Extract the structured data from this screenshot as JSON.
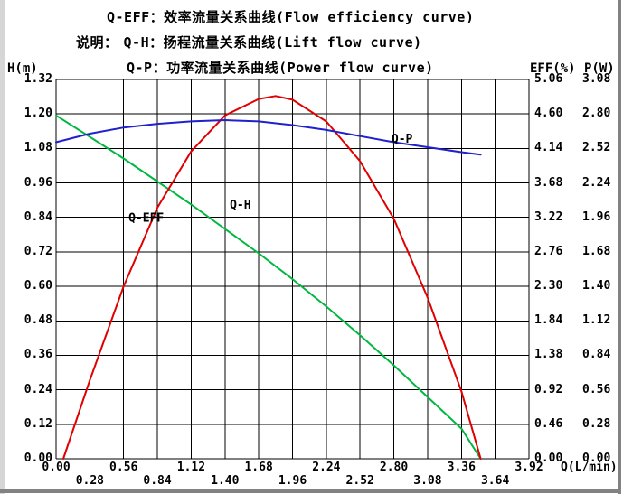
{
  "axes_titles": {
    "left": "H(m)",
    "right_eff": "EFF(%)",
    "right_p": "P(W)",
    "x": "Q(L/min)"
  },
  "chart_data": {
    "type": "line",
    "descriptions": {
      "line1": "Q-EFF：效率流量关系曲线(Flow efficiency curve)",
      "prefix": "说明：",
      "line2": "Q-H：扬程流量关系曲线(Lift flow curve)",
      "line3": "Q-P：功率流量关系曲线(Power flow curve)"
    },
    "x_label": "Q(L/min)",
    "x_range": [
      0,
      3.92
    ],
    "x_tick_labels": [
      "0.00",
      "0.28",
      "0.56",
      "0.84",
      "1.12",
      "1.40",
      "1.68",
      "1.96",
      "2.24",
      "2.52",
      "2.80",
      "3.08",
      "3.36",
      "3.64",
      "3.92"
    ],
    "grid": true,
    "y_axes": [
      {
        "id": "H",
        "title": "H(m)",
        "range": [
          0,
          1.32
        ],
        "tick_labels": [
          "1.32",
          "1.20",
          "1.08",
          "0.96",
          "0.84",
          "0.72",
          "0.60",
          "0.48",
          "0.36",
          "0.24",
          "0.12",
          "0.00"
        ]
      },
      {
        "id": "EFF",
        "title": "EFF(%)",
        "range": [
          0,
          5.06
        ],
        "tick_labels": [
          "5.06",
          "4.60",
          "4.14",
          "3.68",
          "3.22",
          "2.76",
          "2.30",
          "1.84",
          "1.38",
          "0.92",
          "0.46",
          "0.00"
        ]
      },
      {
        "id": "P",
        "title": "P(W)",
        "range": [
          0,
          3.08
        ],
        "tick_labels": [
          "3.08",
          "2.80",
          "2.52",
          "2.24",
          "1.96",
          "1.68",
          "1.40",
          "1.12",
          "0.84",
          "0.56",
          "0.28",
          "0.00"
        ]
      }
    ],
    "series": [
      {
        "name": "Q-H",
        "axis": "H",
        "color": "#00b840",
        "label": {
          "text": "Q-H",
          "x": 1.44,
          "y_h": 0.87
        },
        "points": [
          [
            0,
            1.195
          ],
          [
            0.28,
            1.12
          ],
          [
            0.56,
            1.045
          ],
          [
            0.84,
            0.965
          ],
          [
            1.12,
            0.885
          ],
          [
            1.4,
            0.8
          ],
          [
            1.68,
            0.715
          ],
          [
            1.96,
            0.625
          ],
          [
            2.24,
            0.53
          ],
          [
            2.52,
            0.43
          ],
          [
            2.8,
            0.325
          ],
          [
            3.08,
            0.215
          ],
          [
            3.36,
            0.105
          ],
          [
            3.52,
            0.0
          ]
        ]
      },
      {
        "name": "Q-EFF",
        "axis": "EFF",
        "color": "#e00000",
        "label": {
          "text": "Q-EFF",
          "x": 0.6,
          "y_h": 0.825
        },
        "points": [
          [
            0.06,
            0.0
          ],
          [
            0.28,
            1.05
          ],
          [
            0.56,
            2.3
          ],
          [
            0.84,
            3.35
          ],
          [
            1.12,
            4.1
          ],
          [
            1.4,
            4.58
          ],
          [
            1.68,
            4.8
          ],
          [
            1.82,
            4.84
          ],
          [
            1.96,
            4.79
          ],
          [
            2.24,
            4.5
          ],
          [
            2.52,
            3.97
          ],
          [
            2.8,
            3.2
          ],
          [
            3.08,
            2.15
          ],
          [
            3.36,
            0.9
          ],
          [
            3.52,
            0.0
          ]
        ]
      },
      {
        "name": "Q-P",
        "axis": "P",
        "color": "#2020cc",
        "label": {
          "text": "Q-P",
          "x": 2.78,
          "y_h": 1.1
        },
        "points": [
          [
            0,
            2.57
          ],
          [
            0.28,
            2.64
          ],
          [
            0.56,
            2.69
          ],
          [
            0.84,
            2.72
          ],
          [
            1.12,
            2.74
          ],
          [
            1.4,
            2.75
          ],
          [
            1.68,
            2.74
          ],
          [
            1.96,
            2.71
          ],
          [
            2.24,
            2.67
          ],
          [
            2.52,
            2.62
          ],
          [
            2.8,
            2.57
          ],
          [
            3.08,
            2.53
          ],
          [
            3.36,
            2.49
          ],
          [
            3.52,
            2.47
          ]
        ]
      }
    ]
  }
}
